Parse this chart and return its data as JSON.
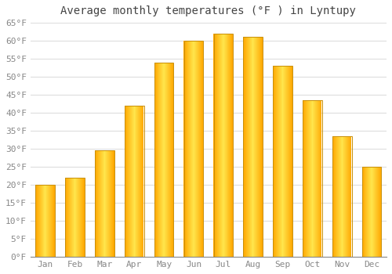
{
  "title": "Average monthly temperatures (°F ) in Lyntupy",
  "months": [
    "Jan",
    "Feb",
    "Mar",
    "Apr",
    "May",
    "Jun",
    "Jul",
    "Aug",
    "Sep",
    "Oct",
    "Nov",
    "Dec"
  ],
  "values": [
    20,
    22,
    29.5,
    42,
    54,
    60,
    62,
    61,
    53,
    43.5,
    33.5,
    25
  ],
  "bar_color": "#FFA500",
  "bar_color_light": "#FFD060",
  "bar_edge_color": "#C8900A",
  "background_color": "#FFFFFF",
  "grid_color": "#DDDDDD",
  "title_color": "#444444",
  "tick_color": "#888888",
  "bottom_line_color": "#000000",
  "ylim": [
    0,
    65
  ],
  "yticks": [
    0,
    5,
    10,
    15,
    20,
    25,
    30,
    35,
    40,
    45,
    50,
    55,
    60,
    65
  ],
  "title_fontsize": 10,
  "tick_fontsize": 8
}
